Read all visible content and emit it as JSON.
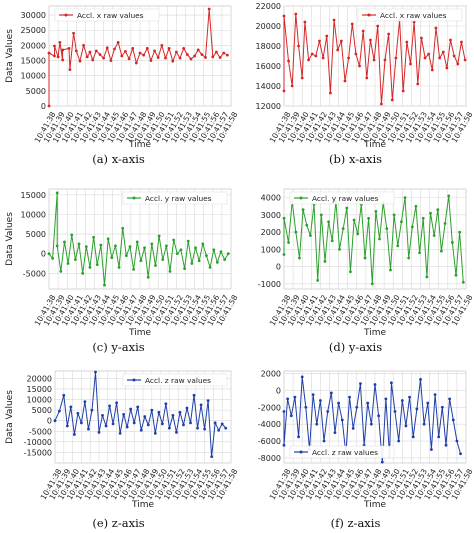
{
  "figure": {
    "time_labels": [
      "10:41:38",
      "10:41:39",
      "10:41:40",
      "10:41:41",
      "10:41:42",
      "10:41:43",
      "10:41:44",
      "10:41:45",
      "10:41:46",
      "10:41:47",
      "10:41:48",
      "10:41:49",
      "10:41:50",
      "10:41:51",
      "10:41:52",
      "10:41:53",
      "10:41:54",
      "10:41:55",
      "10:41:56",
      "10:41:57",
      "10:41:58"
    ]
  },
  "colors": {
    "red": "#d62728",
    "green": "#2ca02c",
    "blue": "#1f3fa8",
    "grid": "#d9d9d9"
  },
  "panels": [
    {
      "caption": "(a) x-axis"
    },
    {
      "caption": "(b) x-axis"
    },
    {
      "caption": "(c) y-axis"
    },
    {
      "caption": "(d) y-axis"
    },
    {
      "caption": "(e) z-axis"
    },
    {
      "caption": "(f) z-axis"
    }
  ],
  "chart_data": [
    {
      "type": "line",
      "xlabel": "Time",
      "ylabel": "Data Values",
      "xlim": [
        0,
        20
      ],
      "ylim": [
        0,
        33000
      ],
      "yticks": [
        0,
        5000,
        10000,
        15000,
        20000,
        25000,
        30000
      ],
      "xtick_labels": [
        "10:41:38",
        "10:41:39",
        "10:41:40",
        "10:41:41",
        "10:41:42",
        "10:41:43",
        "10:41:44",
        "10:41:45",
        "10:41:46",
        "10:41:47",
        "10:41:48",
        "10:41:49",
        "10:41:50",
        "10:41:51",
        "10:41:52",
        "10:41:53",
        "10:41:54",
        "10:41:55",
        "10:41:56",
        "10:41:57",
        "10:41:58"
      ],
      "grid": true,
      "legend_position": "top-left",
      "series": [
        {
          "name": "Accl. x raw values",
          "color": "#d62728",
          "x": [
            0,
            0,
            0.6,
            0.6,
            1.0,
            1.2,
            1.5,
            1.5,
            2.2,
            2.3,
            2.7,
            3.0,
            3.4,
            3.8,
            4.2,
            4.5,
            4.8,
            5.2,
            5.6,
            6.0,
            6.4,
            6.8,
            7.2,
            7.6,
            8.0,
            8.4,
            8.8,
            9.2,
            9.6,
            10.0,
            10.4,
            10.8,
            11.2,
            11.6,
            12.0,
            12.4,
            12.8,
            13.2,
            13.6,
            14.0,
            14.4,
            14.8,
            15.2,
            15.6,
            16.0,
            16.4,
            16.8,
            17.2,
            17.6,
            18.0,
            18.4,
            18.8,
            19.2,
            19.6
          ],
          "y": [
            0,
            17500,
            16500,
            19800,
            16200,
            21000,
            15200,
            18500,
            19000,
            12000,
            24000,
            18200,
            14800,
            20000,
            16200,
            17800,
            15200,
            18200,
            17000,
            15800,
            19200,
            15000,
            18800,
            21000,
            16500,
            18000,
            15600,
            19000,
            14200,
            17500,
            16800,
            19000,
            15000,
            18200,
            16000,
            20000,
            15800,
            19000,
            14800,
            17800,
            15800,
            19000,
            17000,
            15500,
            16500,
            18500,
            17000,
            16000,
            32000,
            16200,
            17800,
            16000,
            17500,
            16800
          ]
        }
      ]
    },
    {
      "type": "line",
      "xlabel": "Time",
      "ylabel": "",
      "xlim": [
        0,
        20
      ],
      "ylim": [
        12000,
        22000
      ],
      "yticks": [
        12000,
        14000,
        16000,
        18000,
        20000,
        22000
      ],
      "xtick_labels": [
        "10:41:38",
        "10:41:39",
        "10:41:40",
        "10:41:41",
        "10:41:42",
        "10:41:43",
        "10:41:44",
        "10:41:45",
        "10:41:46",
        "10:41:47",
        "10:41:48",
        "10:41:49",
        "10:41:50",
        "10:41:51",
        "10:41:52",
        "10:41:53",
        "10:41:54",
        "10:41:55",
        "10:41:56",
        "10:41:57",
        "10:41:58"
      ],
      "grid": true,
      "legend_position": "top-right",
      "series": [
        {
          "name": "Accl. x raw values",
          "color": "#d62728",
          "x": [
            0,
            0,
            0.5,
            0.9,
            1.3,
            1.6,
            2.0,
            2.3,
            2.7,
            3.1,
            3.5,
            3.9,
            4.3,
            4.7,
            5.1,
            5.5,
            5.9,
            6.3,
            6.7,
            7.1,
            7.5,
            7.9,
            8.3,
            8.7,
            9.1,
            9.5,
            9.9,
            10.3,
            10.7,
            11.1,
            11.5,
            11.9,
            12.3,
            12.7,
            13.1,
            13.5,
            13.9,
            14.3,
            14.7,
            15.1,
            15.5,
            15.9,
            16.3,
            16.7,
            17.1,
            17.5,
            17.9,
            18.3,
            18.7,
            19.1,
            19.5,
            19.9
          ],
          "y": [
            13500,
            21000,
            16500,
            14000,
            21200,
            18000,
            14800,
            20400,
            16600,
            17200,
            17000,
            18500,
            16800,
            19000,
            13300,
            20600,
            17600,
            18500,
            14500,
            16800,
            20200,
            17200,
            16000,
            19500,
            14800,
            18600,
            16600,
            20000,
            12200,
            16600,
            19200,
            12600,
            16800,
            20600,
            13500,
            18400,
            16200,
            20400,
            14200,
            18800,
            16800,
            17200,
            15600,
            19800,
            16800,
            17400,
            15800,
            18600,
            17000,
            16200,
            18400,
            16600
          ]
        }
      ]
    },
    {
      "type": "line",
      "xlabel": "Time",
      "ylabel": "Data Values",
      "xlim": [
        0,
        20
      ],
      "ylim": [
        -9000,
        16500
      ],
      "yticks": [
        -5000,
        0,
        5000,
        10000,
        15000
      ],
      "xtick_labels": [
        "10:41:38",
        "10:41:39",
        "10:41:40",
        "10:41:41",
        "10:41:42",
        "10:41:43",
        "10:41:44",
        "10:41:45",
        "10:41:46",
        "10:41:47",
        "10:41:48",
        "10:41:49",
        "10:41:50",
        "10:41:51",
        "10:41:52",
        "10:41:53",
        "10:41:54",
        "10:41:55",
        "10:41:56",
        "10:41:57",
        "10:41:58"
      ],
      "grid": true,
      "legend_position": "top-right",
      "series": [
        {
          "name": "Accl. y raw values",
          "color": "#2ca02c",
          "x": [
            0,
            0.4,
            0.9,
            0.9,
            1.3,
            1.7,
            2.1,
            2.5,
            2.9,
            3.3,
            3.7,
            4.1,
            4.5,
            4.9,
            5.3,
            5.7,
            6.1,
            6.5,
            6.9,
            7.3,
            7.7,
            8.1,
            8.5,
            8.9,
            9.3,
            9.7,
            10.1,
            10.5,
            10.9,
            11.3,
            11.7,
            12.1,
            12.5,
            12.9,
            13.3,
            13.7,
            14.1,
            14.5,
            14.9,
            15.3,
            15.7,
            16.1,
            16.5,
            16.9,
            17.3,
            17.7,
            18.1,
            18.5,
            18.9,
            19.3,
            19.7
          ],
          "y": [
            0,
            -1200,
            15500,
            2000,
            -4500,
            3000,
            -2500,
            4800,
            -1500,
            2500,
            -5000,
            1800,
            -3500,
            4200,
            -2800,
            2200,
            -8000,
            3800,
            -1000,
            2000,
            -3500,
            6500,
            -500,
            1800,
            -4000,
            3000,
            -1800,
            1500,
            -6000,
            2500,
            -3000,
            4500,
            -1500,
            2000,
            -4500,
            3500,
            0,
            1000,
            -3800,
            3200,
            -2500,
            1500,
            -1800,
            2500,
            -500,
            -3500,
            1000,
            -2200,
            500,
            -1500,
            0
          ]
        }
      ]
    },
    {
      "type": "line",
      "xlabel": "Time",
      "ylabel": "",
      "xlim": [
        0,
        20
      ],
      "ylim": [
        -1300,
        4500
      ],
      "yticks": [
        -1000,
        0,
        1000,
        2000,
        3000,
        4000
      ],
      "xtick_labels": [
        "10:41:38",
        "10:41:39",
        "10:41:40",
        "10:41:41",
        "10:41:42",
        "10:41:43",
        "10:41:44",
        "10:41:45",
        "10:41:46",
        "10:41:47",
        "10:41:48",
        "10:41:49",
        "10:41:50",
        "10:41:51",
        "10:41:52",
        "10:41:53",
        "10:41:54",
        "10:41:55",
        "10:41:56",
        "10:41:57",
        "10:41:58"
      ],
      "grid": true,
      "legend_position": "top-left",
      "series": [
        {
          "name": "Accl. y raw values",
          "color": "#2ca02c",
          "x": [
            0,
            0,
            0.5,
            0.9,
            1.3,
            1.7,
            2.1,
            2.5,
            2.9,
            3.3,
            3.7,
            4.1,
            4.5,
            4.9,
            5.3,
            5.7,
            6.1,
            6.5,
            6.9,
            7.3,
            7.7,
            8.1,
            8.5,
            8.9,
            9.3,
            9.7,
            10.1,
            10.5,
            10.9,
            11.3,
            11.7,
            12.1,
            12.5,
            12.9,
            13.3,
            13.7,
            14.1,
            14.5,
            14.9,
            15.3,
            15.7,
            16.1,
            16.5,
            16.9,
            17.3,
            17.7,
            18.1,
            18.5,
            18.9,
            19.3,
            19.7
          ],
          "y": [
            700,
            2800,
            1400,
            3800,
            2000,
            500,
            3300,
            2400,
            1800,
            3600,
            -800,
            3000,
            300,
            2600,
            1500,
            3800,
            1000,
            2200,
            3400,
            -300,
            2700,
            1900,
            3600,
            500,
            2800,
            -1000,
            3200,
            1600,
            3700,
            2200,
            -200,
            3000,
            1200,
            2600,
            4000,
            500,
            2300,
            3500,
            800,
            2800,
            -600,
            3100,
            1800,
            3300,
            900,
            2500,
            4100,
            1400,
            -500,
            2000,
            -900
          ]
        }
      ]
    },
    {
      "type": "line",
      "xlabel": "Time",
      "ylabel": "Data Values",
      "xlim": [
        0,
        20
      ],
      "ylim": [
        -20000,
        23500
      ],
      "yticks": [
        -15000,
        -10000,
        -5000,
        0,
        5000,
        10000,
        15000,
        20000
      ],
      "xtick_labels": [
        "10:41:38",
        "10:41:39",
        "10:41:40",
        "10:41:41",
        "10:41:42",
        "10:41:43",
        "10:41:44",
        "10:41:45",
        "10:41:46",
        "10:41:47",
        "10:41:48",
        "10:41:49",
        "10:41:50",
        "10:41:51",
        "10:41:52",
        "10:41:53",
        "10:41:54",
        "10:41:55",
        "10:41:56",
        "10:41:57",
        "10:41:58"
      ],
      "grid": true,
      "legend_position": "top-right",
      "series": [
        {
          "name": "Accl. z raw values",
          "color": "#1f3fa8",
          "x": [
            0,
            0.5,
            1.0,
            1.4,
            1.8,
            2.2,
            2.6,
            3.0,
            3.4,
            3.8,
            4.2,
            4.6,
            5.0,
            5.4,
            5.8,
            6.2,
            6.6,
            7.0,
            7.4,
            7.8,
            8.2,
            8.6,
            9.0,
            9.4,
            9.8,
            10.2,
            10.6,
            11.0,
            11.4,
            11.8,
            12.2,
            12.6,
            13.0,
            13.4,
            13.8,
            14.2,
            14.6,
            15.0,
            15.4,
            15.8,
            16.2,
            16.6,
            17.0,
            17.4,
            17.8,
            18.2,
            18.6,
            19.0,
            19.4
          ],
          "y": [
            0,
            4500,
            12000,
            -2500,
            6500,
            -6500,
            3500,
            -1000,
            9000,
            -4000,
            5000,
            23000,
            -5500,
            2500,
            -2500,
            7000,
            -1500,
            8500,
            -6000,
            3000,
            -3000,
            5500,
            -1000,
            6500,
            -4500,
            2000,
            -2000,
            5000,
            -6000,
            4000,
            -1500,
            8000,
            -3500,
            2500,
            -5500,
            4000,
            -2000,
            6000,
            -1000,
            12000,
            -3500,
            7500,
            -4000,
            9500,
            -17000,
            -1000,
            -4500,
            -1500,
            -3500
          ]
        }
      ]
    },
    {
      "type": "line",
      "xlabel": "Time",
      "ylabel": "",
      "xlim": [
        0,
        20
      ],
      "ylim": [
        -8600,
        2300
      ],
      "yticks": [
        -8000,
        -6000,
        -4000,
        -2000,
        0,
        2000
      ],
      "xtick_labels": [
        "10:41:38",
        "10:41:39",
        "10:41:40",
        "10:41:41",
        "10:41:42",
        "10:41:43",
        "10:41:44",
        "10:41:45",
        "10:41:46",
        "10:41:47",
        "10:41:48",
        "10:41:49",
        "10:41:50",
        "10:41:51",
        "10:41:52",
        "10:41:53",
        "10:41:54",
        "10:41:55",
        "10:41:56",
        "10:41:57",
        "10:41:58"
      ],
      "grid": true,
      "legend_position": "bottom-left",
      "series": [
        {
          "name": "Accl. z raw values",
          "color": "#1f3fa8",
          "x": [
            0,
            0,
            0.4,
            0.8,
            1.2,
            1.6,
            2.0,
            2.4,
            2.8,
            3.2,
            3.6,
            4.0,
            4.4,
            4.8,
            5.2,
            5.6,
            6.0,
            6.4,
            6.8,
            7.2,
            7.6,
            8.0,
            8.4,
            8.8,
            9.2,
            9.6,
            10.0,
            10.4,
            10.8,
            11.2,
            11.6,
            11.8,
            12.2,
            12.6,
            13.0,
            13.4,
            13.8,
            14.2,
            14.6,
            15.0,
            15.4,
            15.8,
            16.2,
            16.6,
            17.0,
            17.4,
            17.8,
            18.2,
            18.6,
            19.0,
            19.4
          ],
          "y": [
            -2500,
            -6500,
            -1000,
            -3000,
            -800,
            -5500,
            1600,
            -2000,
            -7000,
            -500,
            -4000,
            -1200,
            -6000,
            -2500,
            -300,
            -5000,
            -1500,
            -3500,
            -7500,
            -800,
            -4500,
            -2000,
            800,
            -6500,
            -1500,
            -4000,
            700,
            -3000,
            -8500,
            -1000,
            -7800,
            900,
            -2500,
            -6000,
            -1200,
            -4200,
            -800,
            -5500,
            -2200,
            1300,
            -4000,
            -1500,
            -7000,
            -500,
            -5500,
            -2000,
            -6500,
            -1000,
            -3500,
            -6000,
            -7500
          ]
        }
      ]
    }
  ]
}
